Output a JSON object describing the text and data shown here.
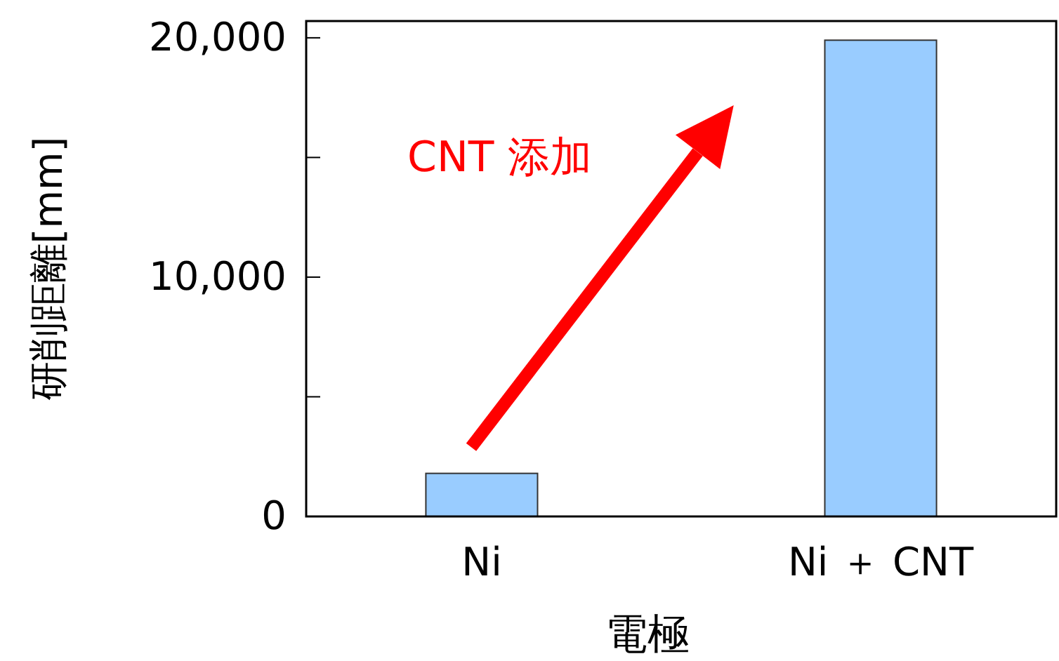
{
  "chart_data": {
    "type": "bar",
    "xlabel": "電極",
    "ylabel": "研削距離[mm]",
    "categories": [
      "Ni",
      "Ni ＋ CNT"
    ],
    "values": [
      1800,
      19900
    ],
    "color": "#99ccff",
    "ylim": [
      0,
      20700
    ],
    "yticks": [
      0,
      {
        "value": 5000,
        "label": null
      },
      {
        "value": 10000,
        "label": "10,000"
      },
      {
        "value": 15000,
        "label": null
      },
      {
        "value": 20000,
        "label": "20,000"
      }
    ],
    "grid": false,
    "annotations": [
      "CNT 添加"
    ]
  }
}
